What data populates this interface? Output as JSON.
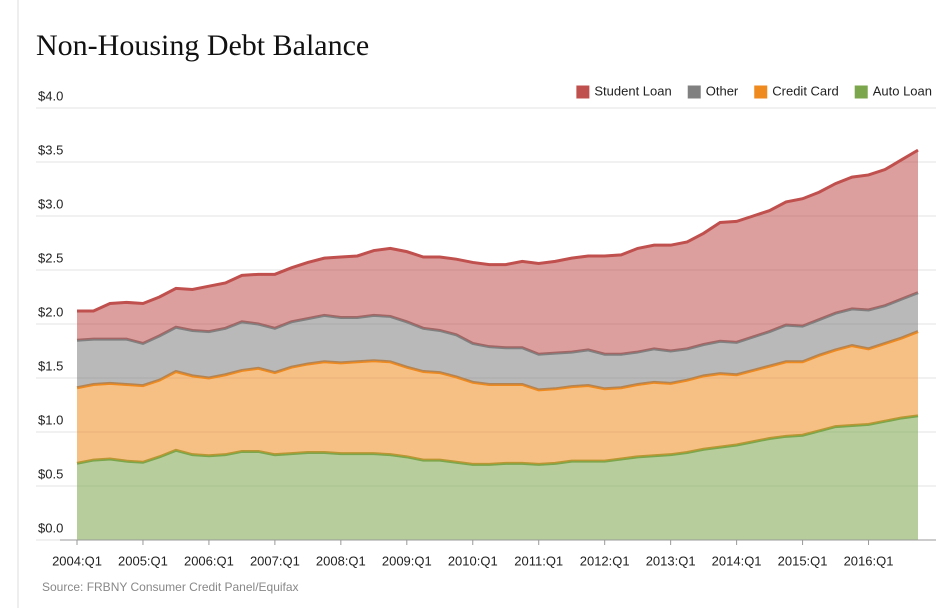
{
  "chart_data": {
    "type": "stacked-area",
    "title": "Non-Housing Debt Balance",
    "y_unit": "trillion",
    "source": "Source: FRBNY Consumer Credit Panel/Equifax",
    "legend": "top-right",
    "grid": true,
    "categories": [
      "2004:Q1",
      null,
      null,
      null,
      "2005:Q1",
      null,
      null,
      null,
      "2006:Q1",
      null,
      null,
      null,
      "2007:Q1",
      null,
      null,
      null,
      "2008:Q1",
      null,
      null,
      null,
      "2009:Q1",
      null,
      null,
      null,
      "2010:Q1",
      null,
      null,
      null,
      "2011:Q1",
      null,
      null,
      null,
      "2012:Q1",
      null,
      null,
      null,
      "2013:Q1",
      null,
      null,
      null,
      "2014:Q1",
      null,
      null,
      null,
      "2015:Q1",
      null,
      null,
      null,
      "2016:Q1",
      null,
      null,
      null
    ],
    "ylim": [
      0,
      4.0
    ],
    "yticks": [
      {
        "value": 0,
        "label": "$0.0"
      },
      {
        "value": 0.5,
        "label": "$0.5"
      },
      {
        "value": 1.0,
        "label": "$1.0"
      },
      {
        "value": 1.5,
        "label": "$1.5"
      },
      {
        "value": 2.0,
        "label": "$2.0"
      },
      {
        "value": 2.5,
        "label": "$2.5"
      },
      {
        "value": 3.0,
        "label": "$3.0"
      },
      {
        "value": 3.5,
        "label": "$3.5"
      },
      {
        "value": 4.0,
        "label": "$4.0"
      }
    ],
    "series": [
      {
        "name": "Student Loan",
        "color": "#c0504d",
        "values": [
          0.27,
          0.26,
          0.33,
          0.34,
          0.37,
          0.36,
          0.36,
          0.38,
          0.42,
          0.42,
          0.43,
          0.46,
          0.5,
          0.5,
          0.52,
          0.53,
          0.56,
          0.57,
          0.6,
          0.63,
          0.65,
          0.66,
          0.68,
          0.7,
          0.75,
          0.76,
          0.77,
          0.8,
          0.84,
          0.85,
          0.87,
          0.87,
          0.91,
          0.92,
          0.96,
          0.96,
          0.98,
          0.99,
          1.03,
          1.1,
          1.12,
          1.12,
          1.12,
          1.14,
          1.18,
          1.18,
          1.2,
          1.22,
          1.25,
          1.26,
          1.29,
          1.32
        ]
      },
      {
        "name": "Other",
        "color": "#808080",
        "values": [
          0.44,
          0.42,
          0.41,
          0.42,
          0.39,
          0.41,
          0.41,
          0.42,
          0.43,
          0.43,
          0.45,
          0.41,
          0.41,
          0.42,
          0.42,
          0.43,
          0.42,
          0.41,
          0.42,
          0.42,
          0.42,
          0.4,
          0.39,
          0.39,
          0.36,
          0.35,
          0.34,
          0.34,
          0.33,
          0.33,
          0.32,
          0.33,
          0.32,
          0.31,
          0.3,
          0.31,
          0.3,
          0.29,
          0.29,
          0.3,
          0.3,
          0.31,
          0.32,
          0.34,
          0.33,
          0.33,
          0.34,
          0.34,
          0.36,
          0.35,
          0.36,
          0.36
        ]
      },
      {
        "name": "Credit Card",
        "color": "#ef8a1f",
        "values": [
          0.7,
          0.7,
          0.7,
          0.71,
          0.71,
          0.71,
          0.73,
          0.73,
          0.72,
          0.74,
          0.75,
          0.77,
          0.76,
          0.8,
          0.82,
          0.84,
          0.84,
          0.85,
          0.86,
          0.86,
          0.83,
          0.82,
          0.81,
          0.79,
          0.76,
          0.74,
          0.73,
          0.73,
          0.69,
          0.69,
          0.69,
          0.7,
          0.67,
          0.66,
          0.67,
          0.68,
          0.66,
          0.67,
          0.68,
          0.68,
          0.65,
          0.66,
          0.67,
          0.69,
          0.68,
          0.7,
          0.71,
          0.74,
          0.7,
          0.72,
          0.74,
          0.78
        ]
      },
      {
        "name": "Auto Loan",
        "color": "#7ba64b",
        "values": [
          0.71,
          0.74,
          0.75,
          0.73,
          0.72,
          0.77,
          0.83,
          0.79,
          0.78,
          0.79,
          0.82,
          0.82,
          0.79,
          0.8,
          0.81,
          0.81,
          0.8,
          0.8,
          0.8,
          0.79,
          0.77,
          0.74,
          0.74,
          0.72,
          0.7,
          0.7,
          0.71,
          0.71,
          0.7,
          0.71,
          0.73,
          0.73,
          0.73,
          0.75,
          0.77,
          0.78,
          0.79,
          0.81,
          0.84,
          0.86,
          0.88,
          0.91,
          0.94,
          0.96,
          0.97,
          1.01,
          1.05,
          1.06,
          1.07,
          1.1,
          1.13,
          1.15
        ]
      }
    ]
  }
}
